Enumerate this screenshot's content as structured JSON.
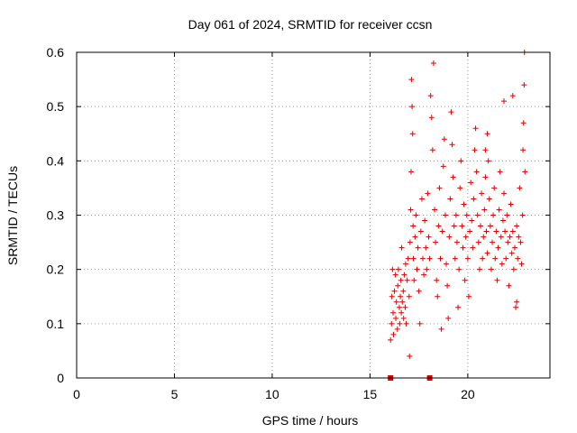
{
  "chart_data": {
    "type": "scatter",
    "title": "Day 061 of 2024, SRMTID for receiver ccsn",
    "xlabel": "GPS time / hours",
    "ylabel": "SRMTID / TECUs",
    "xlim": [
      0,
      24.2
    ],
    "ylim": [
      0,
      0.6
    ],
    "xticks": [
      0,
      5,
      10,
      15,
      20
    ],
    "xtick_labels": [
      "0",
      "5",
      "10",
      "15",
      "20"
    ],
    "yticks": [
      0,
      0.1,
      0.2,
      0.3,
      0.4,
      0.5,
      0.6
    ],
    "ytick_labels": [
      "0",
      "0.1",
      "0.2",
      "0.3",
      "0.4",
      "0.5",
      "0.6"
    ],
    "grid": true,
    "marker": "+",
    "color": "#e00000",
    "zero_markers_x": [
      16.05,
      18.05
    ],
    "series": [
      {
        "name": "SRMTID",
        "points": [
          [
            16.05,
            0.07
          ],
          [
            16.1,
            0.1
          ],
          [
            16.12,
            0.15
          ],
          [
            16.15,
            0.2
          ],
          [
            16.18,
            0.12
          ],
          [
            16.2,
            0.08
          ],
          [
            16.25,
            0.16
          ],
          [
            16.3,
            0.19
          ],
          [
            16.32,
            0.11
          ],
          [
            16.35,
            0.14
          ],
          [
            16.4,
            0.09
          ],
          [
            16.42,
            0.17
          ],
          [
            16.45,
            0.2
          ],
          [
            16.5,
            0.13
          ],
          [
            16.52,
            0.1
          ],
          [
            16.55,
            0.15
          ],
          [
            16.58,
            0.18
          ],
          [
            16.6,
            0.12
          ],
          [
            16.62,
            0.24
          ],
          [
            16.65,
            0.14
          ],
          [
            16.7,
            0.16
          ],
          [
            16.72,
            0.11
          ],
          [
            16.75,
            0.19
          ],
          [
            16.8,
            0.13
          ],
          [
            16.82,
            0.21
          ],
          [
            16.85,
            0.1
          ],
          [
            16.9,
            0.18
          ],
          [
            16.95,
            0.22
          ],
          [
            17.0,
            0.15
          ],
          [
            17.02,
            0.04
          ],
          [
            17.05,
            0.25
          ],
          [
            17.08,
            0.31
          ],
          [
            17.1,
            0.38
          ],
          [
            17.12,
            0.55
          ],
          [
            17.15,
            0.5
          ],
          [
            17.18,
            0.45
          ],
          [
            17.2,
            0.28
          ],
          [
            17.22,
            0.22
          ],
          [
            17.25,
            0.18
          ],
          [
            17.3,
            0.26
          ],
          [
            17.35,
            0.3
          ],
          [
            17.4,
            0.2
          ],
          [
            17.45,
            0.24
          ],
          [
            17.5,
            0.16
          ],
          [
            17.55,
            0.1
          ],
          [
            17.6,
            0.27
          ],
          [
            17.65,
            0.33
          ],
          [
            17.7,
            0.22
          ],
          [
            17.75,
            0.19
          ],
          [
            17.8,
            0.29
          ],
          [
            17.85,
            0.24
          ],
          [
            17.9,
            0.2
          ],
          [
            17.95,
            0.34
          ],
          [
            18.0,
            0.26
          ],
          [
            18.05,
            0.22
          ],
          [
            18.1,
            0.52
          ],
          [
            18.15,
            0.48
          ],
          [
            18.2,
            0.42
          ],
          [
            18.25,
            0.58
          ],
          [
            18.3,
            0.31
          ],
          [
            18.35,
            0.25
          ],
          [
            18.4,
            0.18
          ],
          [
            18.45,
            0.15
          ],
          [
            18.5,
            0.28
          ],
          [
            18.55,
            0.35
          ],
          [
            18.6,
            0.22
          ],
          [
            18.65,
            0.09
          ],
          [
            18.7,
            0.27
          ],
          [
            18.75,
            0.39
          ],
          [
            18.8,
            0.44
          ],
          [
            18.85,
            0.3
          ],
          [
            18.9,
            0.21
          ],
          [
            18.95,
            0.17
          ],
          [
            19.0,
            0.11
          ],
          [
            19.05,
            0.26
          ],
          [
            19.1,
            0.33
          ],
          [
            19.15,
            0.49
          ],
          [
            19.2,
            0.43
          ],
          [
            19.25,
            0.37
          ],
          [
            19.3,
            0.28
          ],
          [
            19.35,
            0.22
          ],
          [
            19.4,
            0.3
          ],
          [
            19.45,
            0.25
          ],
          [
            19.5,
            0.13
          ],
          [
            19.55,
            0.2
          ],
          [
            19.6,
            0.35
          ],
          [
            19.65,
            0.4
          ],
          [
            19.7,
            0.28
          ],
          [
            19.75,
            0.24
          ],
          [
            19.8,
            0.32
          ],
          [
            19.85,
            0.18
          ],
          [
            19.9,
            0.26
          ],
          [
            19.95,
            0.3
          ],
          [
            20.0,
            0.22
          ],
          [
            20.05,
            0.15
          ],
          [
            20.1,
            0.27
          ],
          [
            20.15,
            0.36
          ],
          [
            20.2,
            0.29
          ],
          [
            20.25,
            0.24
          ],
          [
            20.3,
            0.33
          ],
          [
            20.35,
            0.42
          ],
          [
            20.4,
            0.46
          ],
          [
            20.45,
            0.38
          ],
          [
            20.5,
            0.3
          ],
          [
            20.55,
            0.25
          ],
          [
            20.6,
            0.2
          ],
          [
            20.65,
            0.28
          ],
          [
            20.7,
            0.34
          ],
          [
            20.75,
            0.22
          ],
          [
            20.8,
            0.26
          ],
          [
            20.85,
            0.31
          ],
          [
            20.9,
            0.37
          ],
          [
            20.95,
            0.27
          ],
          [
            21.0,
            0.23
          ],
          [
            21.05,
            0.4
          ],
          [
            21.1,
            0.33
          ],
          [
            21.15,
            0.28
          ],
          [
            21.2,
            0.2
          ],
          [
            21.25,
            0.25
          ],
          [
            21.3,
            0.3
          ],
          [
            21.35,
            0.35
          ],
          [
            21.4,
            0.22
          ],
          [
            21.45,
            0.27
          ],
          [
            21.5,
            0.18
          ],
          [
            21.55,
            0.24
          ],
          [
            21.6,
            0.31
          ],
          [
            21.65,
            0.38
          ],
          [
            21.7,
            0.26
          ],
          [
            21.75,
            0.21
          ],
          [
            21.8,
            0.29
          ],
          [
            21.85,
            0.34
          ],
          [
            21.9,
            0.27
          ],
          [
            21.95,
            0.22
          ],
          [
            22.0,
            0.3
          ],
          [
            22.05,
            0.25
          ],
          [
            22.1,
            0.17
          ],
          [
            22.15,
            0.26
          ],
          [
            22.2,
            0.32
          ],
          [
            22.25,
            0.23
          ],
          [
            22.3,
            0.27
          ],
          [
            22.35,
            0.2
          ],
          [
            22.4,
            0.24
          ],
          [
            22.45,
            0.13
          ],
          [
            22.5,
            0.28
          ],
          [
            22.55,
            0.22
          ],
          [
            22.6,
            0.26
          ],
          [
            22.65,
            0.35
          ],
          [
            22.7,
            0.25
          ],
          [
            22.75,
            0.21
          ],
          [
            22.8,
            0.3
          ],
          [
            22.82,
            0.42
          ],
          [
            22.85,
            0.47
          ],
          [
            22.88,
            0.54
          ],
          [
            22.9,
            0.6
          ],
          [
            22.92,
            0.38
          ],
          [
            22.3,
            0.52
          ],
          [
            21.85,
            0.51
          ],
          [
            22.5,
            0.14
          ],
          [
            21.0,
            0.45
          ],
          [
            20.9,
            0.42
          ]
        ]
      }
    ]
  }
}
